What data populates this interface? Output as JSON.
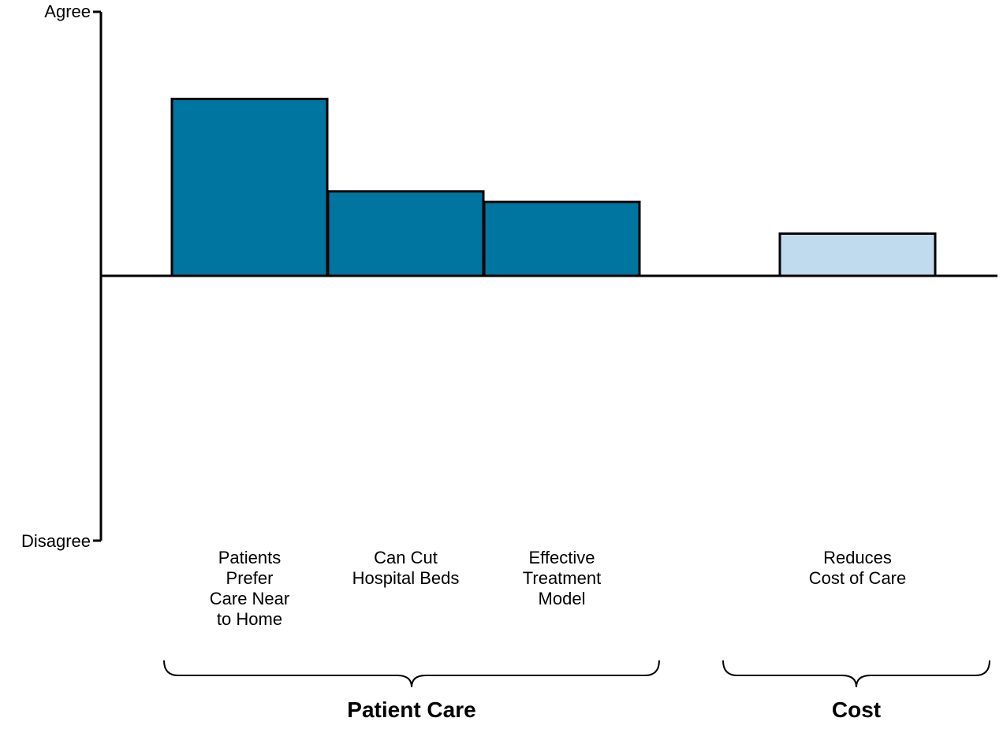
{
  "chart_data": {
    "type": "bar",
    "y_axis": {
      "top_label": "Agree",
      "bottom_label": "Disagree",
      "ylim": [
        -1,
        1
      ]
    },
    "categories": [
      {
        "lines": [
          "Patients",
          "Prefer",
          "Care Near",
          "to Home"
        ],
        "value": 0.67,
        "group": 0
      },
      {
        "lines": [
          "Can Cut",
          "Hospital Beds"
        ],
        "value": 0.32,
        "group": 0
      },
      {
        "lines": [
          "Effective",
          "Treatment",
          "Model"
        ],
        "value": 0.28,
        "group": 0
      },
      {
        "lines": [
          "Reduces",
          "Cost of Care"
        ],
        "value": 0.16,
        "group": 1
      }
    ],
    "groups": [
      {
        "name": "Patient Care",
        "color": "#00759f"
      },
      {
        "name": "Cost",
        "color": "#c0daee"
      }
    ],
    "grid": false,
    "legend": "none"
  }
}
